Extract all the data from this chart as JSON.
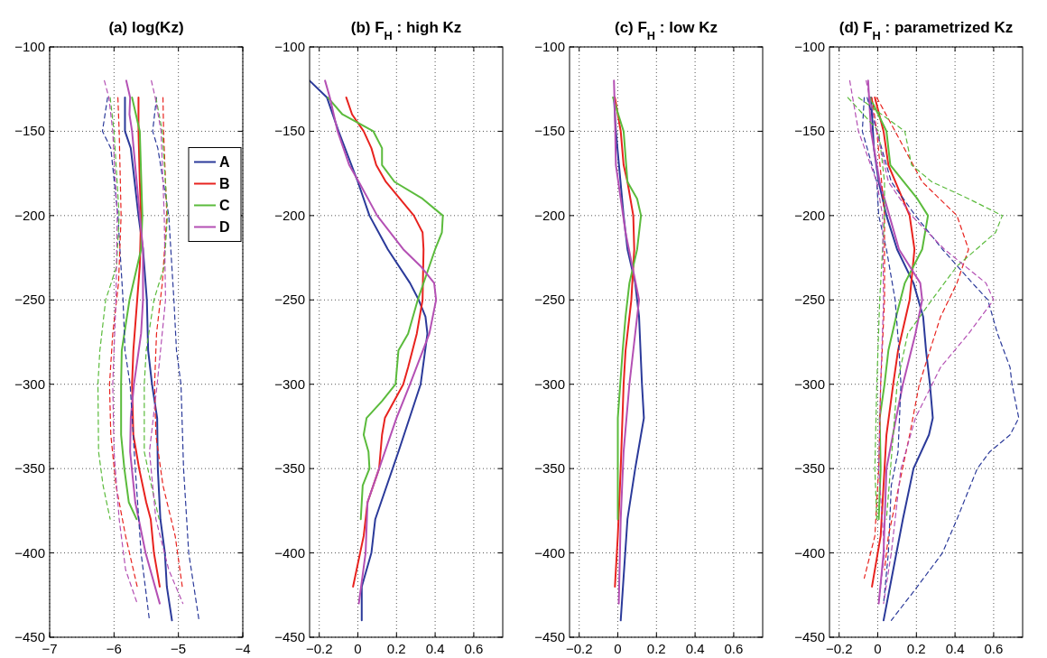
{
  "chart_data": [
    {
      "type": "line",
      "title": "(a) log(Kz)",
      "xlim": [
        -7,
        -4
      ],
      "xticks": [
        -7,
        -6,
        -5,
        -4
      ],
      "ylim": [
        -450,
        -100
      ],
      "yticks": [
        -450,
        -400,
        -350,
        -300,
        -250,
        -200,
        -150,
        -100
      ],
      "grid": true,
      "legend": "top right",
      "series": [
        {
          "name": "A",
          "color": "#2b3a9a",
          "line_style": "solid",
          "x": [
            -5.83,
            -5.83,
            -5.74,
            -5.68,
            -5.62,
            -5.55,
            -5.49,
            -5.47,
            -5.41,
            -5.33,
            -5.32,
            -5.28,
            -5.21,
            -5.18,
            -5.1
          ],
          "values": [
            -130,
            -150,
            -160,
            -180,
            -200,
            -220,
            -250,
            -280,
            -300,
            -320,
            -350,
            -380,
            -400,
            -420,
            -440
          ]
        },
        {
          "name": "B",
          "color": "#e8231f",
          "line_style": "solid",
          "x": [
            -5.62,
            -5.62,
            -5.6,
            -5.58,
            -5.6,
            -5.64,
            -5.7,
            -5.72,
            -5.7,
            -5.61,
            -5.5,
            -5.43,
            -5.38,
            -5.29
          ],
          "values": [
            -130,
            -150,
            -180,
            -200,
            -230,
            -250,
            -280,
            -300,
            -330,
            -350,
            -370,
            -380,
            -400,
            -420
          ]
        },
        {
          "name": "C",
          "color": "#5bbb3c",
          "line_style": "solid",
          "x": [
            -5.72,
            -5.6,
            -5.56,
            -5.58,
            -5.76,
            -5.88,
            -5.89,
            -5.89,
            -5.84,
            -5.77,
            -5.65
          ],
          "values": [
            -130,
            -150,
            -200,
            -220,
            -250,
            -280,
            -300,
            -330,
            -350,
            -370,
            -380
          ]
        },
        {
          "name": "D",
          "color": "#b450b4",
          "line_style": "solid",
          "x": [
            -5.81,
            -5.75,
            -5.76,
            -5.72,
            -5.6,
            -5.55,
            -5.55,
            -5.58,
            -5.69,
            -5.74,
            -5.75,
            -5.67,
            -5.51,
            -5.29
          ],
          "values": [
            -120,
            -130,
            -140,
            -150,
            -200,
            -220,
            -250,
            -270,
            -300,
            -320,
            -340,
            -370,
            -400,
            -430
          ]
        },
        {
          "color": "#2b3a9a",
          "line_style": "dashed",
          "x": [
            -6.1,
            -6.18,
            -6.05,
            -5.94,
            -5.86,
            -5.83,
            -5.75,
            -5.67,
            -5.58,
            -5.45
          ],
          "values": [
            -130,
            -150,
            -160,
            -200,
            -250,
            -280,
            -300,
            -350,
            -400,
            -440
          ]
        },
        {
          "color": "#2b3a9a",
          "line_style": "dashed",
          "x": [
            -5.34,
            -5.4,
            -5.32,
            -5.15,
            -5.07,
            -5.03,
            -4.96,
            -4.92,
            -4.84,
            -4.68
          ],
          "values": [
            -130,
            -150,
            -160,
            -200,
            -250,
            -280,
            -300,
            -350,
            -400,
            -440
          ]
        },
        {
          "color": "#e8231f",
          "line_style": "dashed",
          "x": [
            -5.94,
            -5.92,
            -5.89,
            -5.93,
            -6.02,
            -6.07,
            -6.05,
            -5.97,
            -5.82,
            -5.64
          ],
          "values": [
            -130,
            -150,
            -200,
            -240,
            -270,
            -300,
            -330,
            -360,
            -390,
            -420
          ]
        },
        {
          "color": "#e8231f",
          "line_style": "dashed",
          "x": [
            -5.24,
            -5.23,
            -5.18,
            -5.25,
            -5.34,
            -5.37,
            -5.35,
            -5.24,
            -5.05,
            -4.94
          ],
          "values": [
            -130,
            -150,
            -200,
            -240,
            -270,
            -300,
            -330,
            -360,
            -390,
            -420
          ]
        },
        {
          "color": "#5bbb3c",
          "line_style": "dashed",
          "x": [
            -6.06,
            -6.0,
            -5.92,
            -5.96,
            -6.13,
            -6.22,
            -6.25,
            -6.24,
            -6.17,
            -6.06
          ],
          "values": [
            -130,
            -150,
            -200,
            -230,
            -250,
            -280,
            -300,
            -340,
            -360,
            -380
          ]
        },
        {
          "color": "#5bbb3c",
          "line_style": "dashed",
          "x": [
            -5.35,
            -5.25,
            -5.17,
            -5.22,
            -5.38,
            -5.5,
            -5.53,
            -5.53,
            -5.42,
            -5.3
          ],
          "values": [
            -130,
            -150,
            -200,
            -230,
            -250,
            -280,
            -300,
            -340,
            -360,
            -380
          ]
        },
        {
          "color": "#b450b4",
          "line_style": "dashed",
          "x": [
            -6.15,
            -6.08,
            -6.02,
            -5.95,
            -5.97,
            -6.02,
            -6.0,
            -5.92,
            -5.82,
            -5.64
          ],
          "values": [
            -120,
            -130,
            -150,
            -200,
            -250,
            -300,
            -340,
            -380,
            -410,
            -430
          ]
        },
        {
          "color": "#b450b4",
          "line_style": "dashed",
          "x": [
            -5.42,
            -5.36,
            -5.27,
            -5.22,
            -5.2,
            -5.33,
            -5.45,
            -5.35,
            -5.15,
            -4.93
          ],
          "values": [
            -120,
            -130,
            -150,
            -200,
            -250,
            -300,
            -340,
            -380,
            -410,
            -430
          ]
        }
      ]
    },
    {
      "type": "line",
      "title": "(b) F$_{H}$ : high Kz",
      "xlim": [
        -0.25,
        0.75
      ],
      "xticks": [
        -0.2,
        0,
        0.2,
        0.4,
        0.6
      ],
      "ylim": [
        -450,
        -100
      ],
      "yticks": [
        -450,
        -400,
        -350,
        -300,
        -250,
        -200,
        -150,
        -100
      ],
      "grid": true,
      "series": [
        {
          "color": "#2b3a9a",
          "line_style": "solid",
          "x": [
            -0.25,
            -0.16,
            -0.1,
            0.0,
            0.06,
            0.155,
            0.27,
            0.315,
            0.35,
            0.36,
            0.325,
            0.21,
            0.12,
            0.09,
            0.07,
            0.02,
            0.02
          ],
          "values": [
            -120,
            -130,
            -150,
            -180,
            -200,
            -220,
            -240,
            -250,
            -260,
            -270,
            -300,
            -340,
            -370,
            -380,
            -400,
            -420,
            -440
          ]
        },
        {
          "color": "#e8231f",
          "line_style": "solid",
          "x": [
            -0.06,
            -0.03,
            0.03,
            0.07,
            0.095,
            0.145,
            0.29,
            0.335,
            0.34,
            0.335,
            0.305,
            0.26,
            0.235,
            0.14,
            0.125,
            0.11,
            0.05,
            0.03,
            -0.025
          ],
          "values": [
            -130,
            -140,
            -150,
            -160,
            -170,
            -180,
            -200,
            -210,
            -220,
            -250,
            -270,
            -290,
            -300,
            -320,
            -330,
            -350,
            -370,
            -390,
            -420
          ]
        },
        {
          "color": "#5bbb3c",
          "line_style": "solid",
          "x": [
            -0.155,
            -0.08,
            0.08,
            0.125,
            0.125,
            0.19,
            0.335,
            0.44,
            0.435,
            0.4,
            0.31,
            0.26,
            0.21,
            0.195,
            0.125,
            0.045,
            0.03,
            0.055,
            0.06,
            0.025,
            0.015
          ],
          "values": [
            -130,
            -140,
            -150,
            -160,
            -170,
            -180,
            -190,
            -200,
            -210,
            -220,
            -250,
            -270,
            -280,
            -300,
            -310,
            -320,
            -330,
            -340,
            -350,
            -360,
            -380
          ]
        },
        {
          "color": "#b450b4",
          "line_style": "solid",
          "x": [
            -0.17,
            -0.145,
            -0.105,
            -0.045,
            0.005,
            0.1,
            0.235,
            0.325,
            0.395,
            0.405,
            0.37,
            0.27,
            0.2,
            0.11,
            0.05,
            0.04,
            0.005
          ],
          "values": [
            -120,
            -130,
            -150,
            -170,
            -180,
            -200,
            -220,
            -230,
            -240,
            -250,
            -270,
            -300,
            -320,
            -350,
            -370,
            -400,
            -430
          ]
        }
      ]
    },
    {
      "type": "line",
      "title": "(c) F$_{H}$ : low Kz",
      "xlim": [
        -0.25,
        0.75
      ],
      "xticks": [
        -0.2,
        0,
        0.2,
        0.4,
        0.6
      ],
      "ylim": [
        -450,
        -100
      ],
      "yticks": [
        -450,
        -400,
        -350,
        -300,
        -250,
        -200,
        -150,
        -100
      ],
      "grid": true,
      "series": [
        {
          "color": "#2b3a9a",
          "line_style": "solid",
          "x": [
            -0.02,
            -0.01,
            0.03,
            0.05,
            0.09,
            0.11,
            0.125,
            0.135,
            0.12,
            0.09,
            0.05,
            0.015
          ],
          "values": [
            -130,
            -150,
            -200,
            -220,
            -240,
            -260,
            -300,
            -320,
            -330,
            -350,
            -380,
            -440
          ]
        },
        {
          "color": "#e8231f",
          "line_style": "solid",
          "x": [
            -0.015,
            0.015,
            0.03,
            0.05,
            0.08,
            0.085,
            0.07,
            0.04,
            0.03,
            0.015,
            0.0,
            -0.015
          ],
          "values": [
            -130,
            -150,
            -170,
            -180,
            -200,
            -220,
            -250,
            -280,
            -300,
            -350,
            -390,
            -420
          ]
        },
        {
          "color": "#5bbb3c",
          "line_style": "solid",
          "x": [
            -0.025,
            0.03,
            0.05,
            0.1,
            0.12,
            0.1,
            0.06,
            0.04,
            0.025,
            0.0,
            0.0
          ],
          "values": [
            -130,
            -150,
            -180,
            -190,
            -200,
            -220,
            -240,
            -260,
            -280,
            -320,
            -380
          ]
        },
        {
          "color": "#b450b4",
          "line_style": "solid",
          "x": [
            -0.02,
            -0.015,
            -0.01,
            0.015,
            0.04,
            0.075,
            0.11,
            0.09,
            0.06,
            0.03,
            0.015,
            0.005
          ],
          "values": [
            -120,
            -140,
            -170,
            -190,
            -210,
            -230,
            -250,
            -270,
            -300,
            -340,
            -380,
            -430
          ]
        }
      ]
    },
    {
      "type": "line",
      "title": "(d) F$_{H}$ : parametrized Kz",
      "xlim": [
        -0.25,
        0.75
      ],
      "xticks": [
        -0.2,
        0,
        0.2,
        0.4,
        0.6
      ],
      "ylim": [
        -450,
        -100
      ],
      "yticks": [
        -450,
        -400,
        -350,
        -300,
        -250,
        -200,
        -150,
        -100
      ],
      "grid": true,
      "series": [
        {
          "color": "#2b3a9a",
          "line_style": "solid",
          "x": [
            -0.035,
            -0.02,
            0.005,
            0.045,
            0.1,
            0.185,
            0.235,
            0.25,
            0.27,
            0.285,
            0.265,
            0.185,
            0.13,
            0.08,
            0.03
          ],
          "values": [
            -130,
            -160,
            -180,
            -200,
            -220,
            -240,
            -260,
            -280,
            -300,
            -320,
            -330,
            -350,
            -380,
            -410,
            -440
          ]
        },
        {
          "color": "#e8231f",
          "line_style": "solid",
          "x": [
            -0.015,
            0.03,
            0.055,
            0.165,
            0.19,
            0.165,
            0.105,
            0.08,
            0.045,
            0.03,
            0.015,
            -0.03
          ],
          "values": [
            -130,
            -150,
            -170,
            -200,
            -220,
            -250,
            -280,
            -300,
            -330,
            -360,
            -390,
            -420
          ]
        },
        {
          "color": "#5bbb3c",
          "line_style": "solid",
          "x": [
            -0.04,
            0.045,
            0.065,
            0.205,
            0.26,
            0.23,
            0.14,
            0.095,
            0.055,
            0.035,
            0.01,
            0.015,
            0.005
          ],
          "values": [
            -130,
            -150,
            -170,
            -190,
            -200,
            -220,
            -240,
            -260,
            -280,
            -300,
            -320,
            -350,
            -380
          ]
        },
        {
          "color": "#b450b4",
          "line_style": "solid",
          "x": [
            -0.05,
            -0.035,
            0.01,
            0.06,
            0.11,
            0.22,
            0.23,
            0.195,
            0.13,
            0.095,
            0.045,
            0.03,
            0.005
          ],
          "values": [
            -120,
            -150,
            -180,
            -200,
            -220,
            -240,
            -250,
            -270,
            -300,
            -320,
            -350,
            -400,
            -430
          ]
        },
        {
          "color": "#2b3a9a",
          "line_style": "dashed",
          "x": [
            -0.055,
            0.07,
            0.195,
            0.335,
            0.49,
            0.57,
            0.62,
            0.685,
            0.695,
            0.73,
            0.685,
            0.58,
            0.515,
            0.41,
            0.335,
            0.205,
            0.07
          ],
          "values": [
            -130,
            -180,
            -200,
            -220,
            -240,
            -250,
            -270,
            -290,
            -300,
            -320,
            -330,
            -340,
            -350,
            -380,
            -400,
            -420,
            -440
          ]
        },
        {
          "color": "#2b3a9a",
          "line_style": "dashed",
          "x": [
            -0.07,
            -0.08,
            -0.005,
            0.005,
            0.045,
            0.09,
            0.11,
            0.12,
            0.105,
            0.07,
            0.055,
            0.03
          ],
          "values": [
            -130,
            -150,
            -180,
            -200,
            -220,
            -250,
            -280,
            -300,
            -340,
            -360,
            -400,
            -430
          ]
        },
        {
          "color": "#e8231f",
          "line_style": "dashed",
          "x": [
            -0.005,
            0.09,
            0.23,
            0.41,
            0.47,
            0.41,
            0.325,
            0.27,
            0.215,
            0.165,
            0.11,
            0.055,
            0.035
          ],
          "values": [
            -130,
            -150,
            -180,
            -200,
            -220,
            -240,
            -260,
            -280,
            -300,
            -330,
            -360,
            -390,
            -410
          ]
        },
        {
          "color": "#e8231f",
          "line_style": "dashed",
          "x": [
            -0.03,
            -0.005,
            0.02,
            0.035,
            0.035,
            0.015,
            0.005,
            -0.015,
            -0.07
          ],
          "values": [
            -130,
            -150,
            -180,
            -200,
            -250,
            -300,
            -350,
            -390,
            -415
          ]
        },
        {
          "color": "#5bbb3c",
          "line_style": "dashed",
          "x": [
            -0.1,
            0.14,
            0.175,
            0.28,
            0.47,
            0.645,
            0.61,
            0.41,
            0.28,
            0.155,
            0.1,
            0.08,
            0.045
          ],
          "values": [
            -130,
            -150,
            -170,
            -180,
            -190,
            -200,
            -210,
            -230,
            -250,
            -270,
            -300,
            -330,
            -380
          ]
        },
        {
          "color": "#5bbb3c",
          "line_style": "dashed",
          "x": [
            -0.155,
            0.005,
            0.035,
            0.035,
            0.01,
            -0.005,
            -0.015,
            -0.005
          ],
          "values": [
            -130,
            -150,
            -180,
            -200,
            -250,
            -300,
            -350,
            -380
          ]
        },
        {
          "color": "#b450b4",
          "line_style": "dashed",
          "x": [
            -0.06,
            -0.005,
            0.055,
            0.175,
            0.345,
            0.56,
            0.6,
            0.47,
            0.325,
            0.195,
            0.12,
            0.07,
            0.03
          ],
          "values": [
            -120,
            -150,
            -180,
            -200,
            -220,
            -240,
            -250,
            -270,
            -290,
            -320,
            -350,
            -400,
            -430
          ]
        },
        {
          "color": "#b450b4",
          "line_style": "dashed",
          "x": [
            -0.145,
            -0.1,
            -0.005,
            0.025,
            0.03,
            0.015,
            0.005,
            0.035,
            0.005
          ],
          "values": [
            -120,
            -150,
            -180,
            -200,
            -250,
            -300,
            -350,
            -400,
            -430
          ]
        }
      ]
    }
  ]
}
